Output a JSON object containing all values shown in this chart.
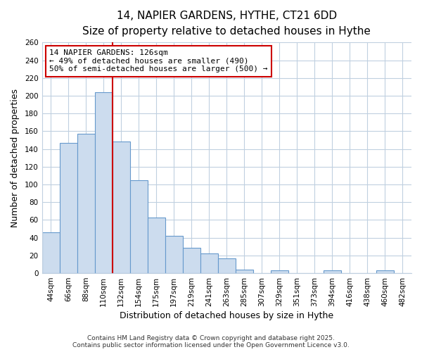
{
  "title": "14, NAPIER GARDENS, HYTHE, CT21 6DD",
  "subtitle": "Size of property relative to detached houses in Hythe",
  "xlabel": "Distribution of detached houses by size in Hythe",
  "ylabel": "Number of detached properties",
  "categories": [
    "44sqm",
    "66sqm",
    "88sqm",
    "110sqm",
    "132sqm",
    "154sqm",
    "175sqm",
    "197sqm",
    "219sqm",
    "241sqm",
    "263sqm",
    "285sqm",
    "307sqm",
    "329sqm",
    "351sqm",
    "373sqm",
    "394sqm",
    "416sqm",
    "438sqm",
    "460sqm",
    "482sqm"
  ],
  "values": [
    46,
    147,
    157,
    204,
    148,
    105,
    63,
    42,
    29,
    22,
    17,
    4,
    0,
    3,
    0,
    0,
    3,
    0,
    0,
    3,
    0
  ],
  "bar_color": "#ccdcee",
  "bar_edge_color": "#6699cc",
  "vline_color": "#cc0000",
  "vline_x_index": 4,
  "ylim": [
    0,
    260
  ],
  "yticks": [
    0,
    20,
    40,
    60,
    80,
    100,
    120,
    140,
    160,
    180,
    200,
    220,
    240,
    260
  ],
  "annotation_text": "14 NAPIER GARDENS: 126sqm\n← 49% of detached houses are smaller (490)\n50% of semi-detached houses are larger (500) →",
  "annotation_box_color": "#ffffff",
  "annotation_box_edge": "#cc0000",
  "footer_line1": "Contains HM Land Registry data © Crown copyright and database right 2025.",
  "footer_line2": "Contains public sector information licensed under the Open Government Licence v3.0.",
  "plot_bg_color": "#ffffff",
  "fig_bg_color": "#ffffff",
  "grid_color": "#c0d0e0",
  "title_fontsize": 11,
  "subtitle_fontsize": 9.5,
  "axis_label_fontsize": 9,
  "tick_fontsize": 7.5,
  "annotation_fontsize": 8,
  "footer_fontsize": 6.5
}
